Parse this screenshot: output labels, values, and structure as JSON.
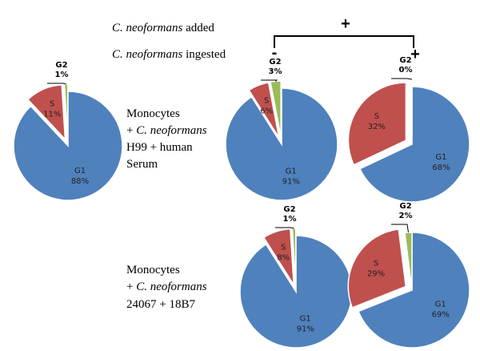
{
  "chart_data": [
    {
      "type": "pie",
      "categories": [
        "G1",
        "S",
        "G2"
      ],
      "values": [
        88,
        11,
        1
      ],
      "value_labels": [
        "88%",
        "11%",
        "1%"
      ],
      "colors": [
        "#4f81bd",
        "#c0504d",
        "#9bbb59"
      ],
      "explode": [
        false,
        true,
        true
      ]
    },
    {
      "type": "pie",
      "categories": [
        "G1",
        "S",
        "G2"
      ],
      "values": [
        91,
        6,
        3
      ],
      "value_labels": [
        "91%",
        "6%",
        "3%"
      ],
      "colors": [
        "#4f81bd",
        "#c0504d",
        "#9bbb59"
      ],
      "explode": [
        false,
        true,
        true
      ]
    },
    {
      "type": "pie",
      "categories": [
        "G1",
        "S",
        "G2"
      ],
      "values": [
        68,
        32,
        0
      ],
      "value_labels": [
        "68%",
        "32%",
        "0%"
      ],
      "colors": [
        "#4f81bd",
        "#c0504d",
        "#9bbb59"
      ],
      "explode": [
        false,
        true,
        true
      ]
    },
    {
      "type": "pie",
      "categories": [
        "G1",
        "S",
        "G2"
      ],
      "values": [
        91,
        8,
        1
      ],
      "value_labels": [
        "91%",
        "8%",
        "1%"
      ],
      "colors": [
        "#4f81bd",
        "#c0504d",
        "#9bbb59"
      ],
      "explode": [
        false,
        true,
        true
      ]
    },
    {
      "type": "pie",
      "categories": [
        "G1",
        "S",
        "G2"
      ],
      "values": [
        69,
        29,
        2
      ],
      "value_labels": [
        "69%",
        "29%",
        "2%"
      ],
      "colors": [
        "#4f81bd",
        "#c0504d",
        "#9bbb59"
      ],
      "explode": [
        false,
        true,
        false
      ]
    }
  ],
  "header": {
    "species": "C. neoformans",
    "added": "added",
    "ingested": "ingested",
    "added_sign": "+",
    "not_ingested_sign": "-",
    "ingested_sign": "+"
  },
  "rows": [
    {
      "line1": "Monocytes",
      "plus": "+",
      "species": "C. neoformans",
      "line3": "H99 + human",
      "line4": "Serum"
    },
    {
      "line1": "Monocytes",
      "plus": "+",
      "species": "C. neoformans",
      "line3": "24067 + 18B7"
    }
  ]
}
